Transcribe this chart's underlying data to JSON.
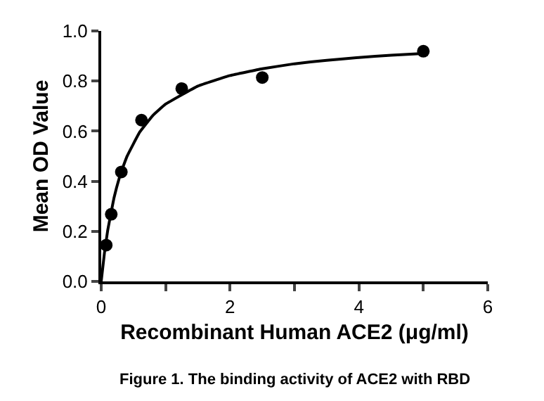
{
  "chart_data": {
    "type": "scatter",
    "xlabel": "Recombinant Human ACE2 (μg/ml)",
    "ylabel": "Mean OD Value",
    "annotations": [
      "Figure 1. The binding activity of ACE2 with RBD"
    ],
    "series": [
      {
        "marker": "circle",
        "color": "#000000",
        "x": [
          0.078,
          0.156,
          0.3125,
          0.625,
          1.25,
          2.5,
          5
        ],
        "values": [
          0.145,
          0.268,
          0.437,
          0.644,
          0.77,
          0.814,
          0.919
        ]
      },
      {
        "type": "line",
        "marker": "none",
        "line_style": "solid",
        "color": "#000000",
        "x": [
          0,
          0.05,
          0.1,
          0.2,
          0.3,
          0.4,
          0.6,
          0.8,
          1,
          1.5,
          2,
          2.5,
          3,
          3.5,
          4,
          4.5,
          5
        ],
        "values": [
          0,
          0.113,
          0.202,
          0.335,
          0.429,
          0.499,
          0.597,
          0.662,
          0.708,
          0.78,
          0.822,
          0.849,
          0.869,
          0.883,
          0.894,
          0.903,
          0.91
        ]
      }
    ],
    "xlim": [
      0,
      6
    ],
    "xticks": [
      0,
      {
        "value": 1,
        "label": null
      },
      2,
      {
        "value": 3,
        "label": null
      },
      4,
      {
        "value": 5,
        "label": null
      },
      6
    ],
    "ylim": [
      0,
      1.0
    ],
    "yticks": [
      {
        "value": 0,
        "label": "0.0"
      },
      0.2,
      0.4,
      0.6,
      0.8,
      {
        "value": 1.0,
        "label": "1.0"
      }
    ],
    "tick_labels": true
  }
}
